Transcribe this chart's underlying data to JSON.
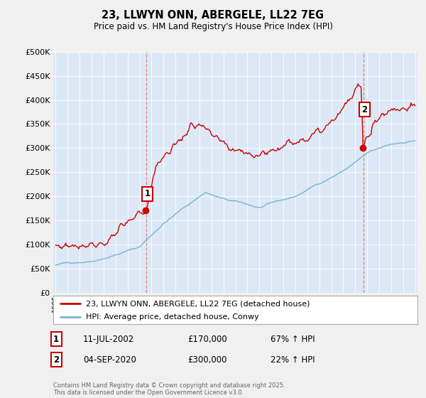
{
  "title": "23, LLWYN ONN, ABERGELE, LL22 7EG",
  "subtitle": "Price paid vs. HM Land Registry's House Price Index (HPI)",
  "ylim": [
    0,
    500000
  ],
  "yticks": [
    0,
    50000,
    100000,
    150000,
    200000,
    250000,
    300000,
    350000,
    400000,
    450000,
    500000
  ],
  "ytick_labels": [
    "£0",
    "£50K",
    "£100K",
    "£150K",
    "£200K",
    "£250K",
    "£300K",
    "£350K",
    "£400K",
    "£450K",
    "£500K"
  ],
  "hpi_color": "#7ab3d4",
  "price_color": "#cc0000",
  "vline_color": "#e07070",
  "plot_bg_color": "#dce8f5",
  "bg_color": "#f0f0f0",
  "sale1_date": "11-JUL-2002",
  "sale1_price": "£170,000",
  "sale1_hpi": "67% ↑ HPI",
  "sale1_year": 2002.54,
  "sale1_value": 170000,
  "sale2_date": "04-SEP-2020",
  "sale2_price": "£300,000",
  "sale2_hpi": "22% ↑ HPI",
  "sale2_year": 2020.67,
  "sale2_value": 300000,
  "legend_line1": "23, LLWYN ONN, ABERGELE, LL22 7EG (detached house)",
  "legend_line2": "HPI: Average price, detached house, Conwy",
  "footnote": "Contains HM Land Registry data © Crown copyright and database right 2025.\nThis data is licensed under the Open Government Licence v3.0.",
  "xmin": 1995,
  "xmax": 2025
}
